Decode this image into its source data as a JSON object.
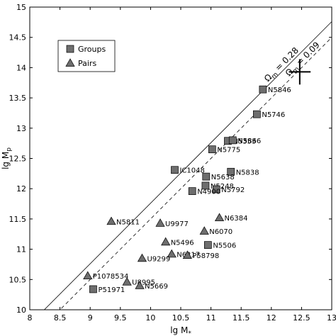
{
  "chart_data": {
    "type": "scatter",
    "x_label": {
      "main": "lg M",
      "sub": "*"
    },
    "y_label": {
      "main": "lg M",
      "sub": "p"
    },
    "xlim": [
      8,
      13
    ],
    "ylim": [
      10,
      15
    ],
    "xticks": [
      8,
      8.5,
      9,
      9.5,
      10,
      10.5,
      11,
      11.5,
      12,
      12.5,
      13
    ],
    "yticks": [
      10,
      10.5,
      11,
      11.5,
      12,
      12.5,
      13,
      13.5,
      14,
      14.5,
      15
    ],
    "legend": "upper left",
    "series": [
      {
        "name": "Groups",
        "marker": "square",
        "color": "#6e6e6e",
        "x": [
          11.86,
          11.76,
          11.28,
          11.36,
          11.02,
          10.4,
          11.33,
          10.92,
          10.91,
          11.09,
          10.69,
          10.95,
          9.05
        ],
        "values": [
          13.64,
          13.23,
          12.79,
          12.8,
          12.65,
          12.31,
          12.28,
          12.2,
          12.05,
          11.99,
          11.96,
          11.07,
          10.34
        ],
        "labels": [
          "N5846",
          "N5746",
          "N5353",
          "N5866",
          "N5775",
          "IC1048",
          "N5838",
          "N5638",
          "N5248",
          "N5792",
          "N4900",
          "N5506",
          "P51971"
        ]
      },
      {
        "name": "Pairs",
        "marker": "triangle",
        "color": "#6e6e6e",
        "x": [
          9.35,
          10.16,
          11.14,
          10.89,
          10.25,
          10.35,
          10.61,
          9.86,
          8.96,
          9.61,
          9.82
        ],
        "values": [
          11.46,
          11.43,
          11.52,
          11.3,
          11.12,
          10.92,
          10.9,
          10.85,
          10.56,
          10.46,
          10.4
        ],
        "labels": [
          "N5811",
          "U9977",
          "N6384",
          "N6070",
          "N5496",
          "N6217",
          "P58798",
          "U9299",
          "P1078534",
          "U8995",
          "N5669"
        ]
      }
    ],
    "lines": [
      {
        "symbol": "Ω",
        "sub": "m",
        "text": " = 0.28",
        "intercept": 1.76,
        "style": "solid"
      },
      {
        "symbol": "Ω",
        "sub": "m",
        "text": " = 0.09",
        "intercept": 1.5,
        "style": "dashed"
      }
    ],
    "cross": {
      "x": 12.47,
      "y": 13.93,
      "xerr": 0.18,
      "yerr": 0.21
    }
  }
}
